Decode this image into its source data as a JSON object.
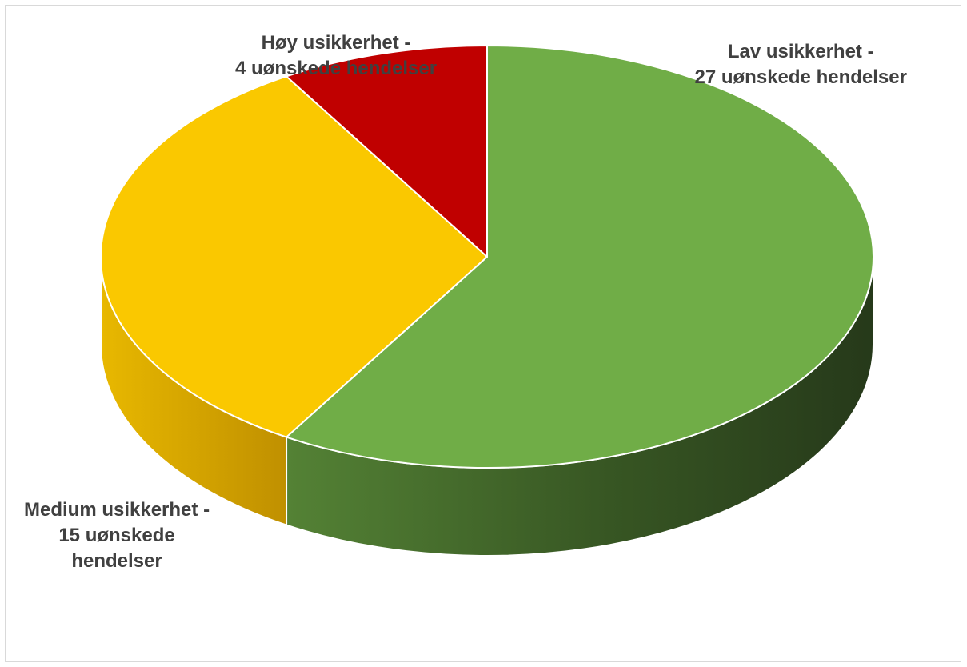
{
  "chart_data": {
    "type": "pie",
    "style": "3d",
    "title": "",
    "slices": [
      {
        "category": "Lav usikkerhet",
        "value": 27,
        "unit": "uønskede hendelser",
        "color": "#70AD47",
        "label_lines": [
          "Lav usikkerhet -",
          "27 uønskede hendelser"
        ]
      },
      {
        "category": "Medium usikkerhet",
        "value": 15,
        "unit": "uønskede hendelser",
        "color": "#FAC800",
        "label_lines": [
          "Medium usikkerhet -",
          "15 uønskede",
          "hendelser"
        ]
      },
      {
        "category": "Høy usikkerhet",
        "value": 4,
        "unit": "uønskede hendelser",
        "color": "#C00000",
        "label_lines": [
          "Høy usikkerhet -",
          "4 uønskede hendelser"
        ]
      }
    ],
    "legend": "none"
  }
}
